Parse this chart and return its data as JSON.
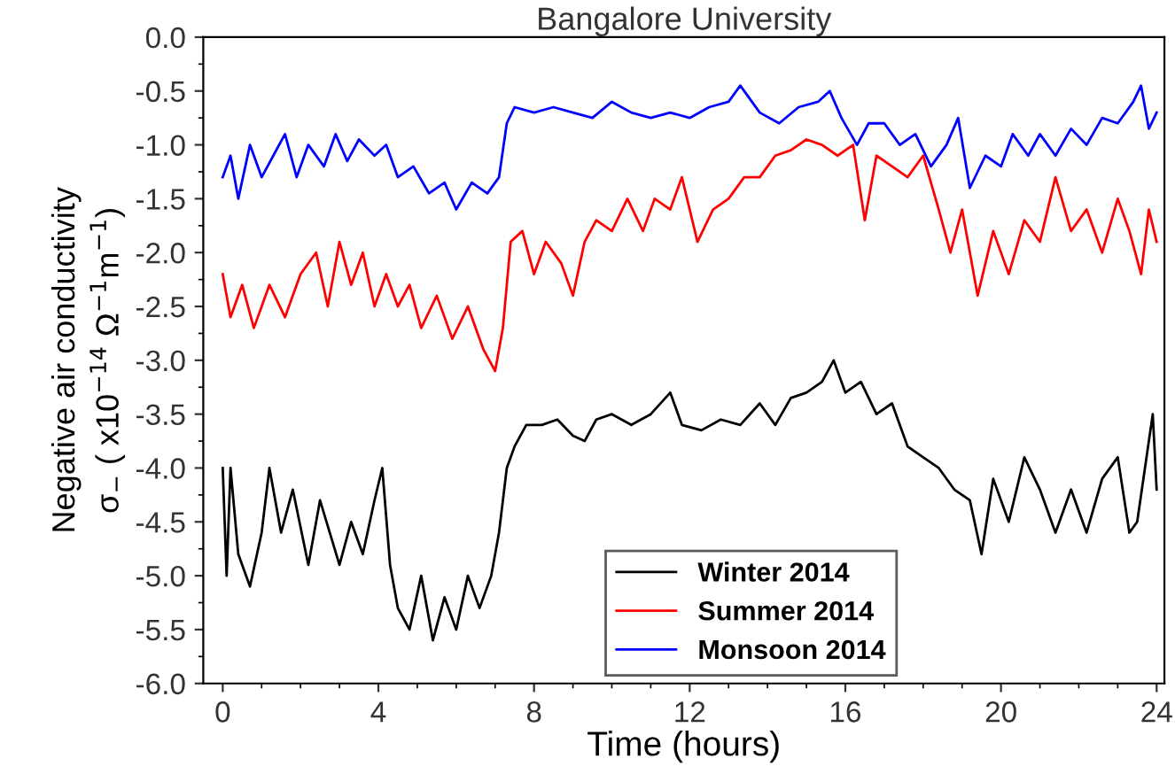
{
  "chart_data": {
    "type": "line",
    "title": "Bangalore University",
    "xlabel": "Time (hours)",
    "ylabel": "Negative air conductivity\nσ$_{−}$ ( x10$^{−14}$ Ω$^{−1}$m$^{−1}$)",
    "xlim": [
      -0.5,
      24.2
    ],
    "ylim": [
      -6.0,
      0.0
    ],
    "xticks": [
      0,
      4,
      8,
      12,
      16,
      20,
      24
    ],
    "yticks": [
      {
        "value": -6,
        "label": "-6.0"
      },
      -5.5,
      {
        "value": -5,
        "label": "-5.0"
      },
      -4.5,
      {
        "value": -4,
        "label": "-4.0"
      },
      -3.5,
      {
        "value": -3,
        "label": "-3.0"
      },
      -2.5,
      {
        "value": -2,
        "label": "-2.0"
      },
      -1.5,
      {
        "value": -1,
        "label": "-1.0"
      },
      -0.5,
      {
        "value": 0,
        "label": "0.0"
      }
    ],
    "grid": false,
    "legend": "bottom",
    "marker": "none",
    "line_style": "solid",
    "series": [
      {
        "name": "Winter 2014",
        "color": "#000000",
        "x": [
          0,
          0.1,
          0.2,
          0.4,
          0.7,
          1.0,
          1.2,
          1.5,
          1.8,
          2.2,
          2.5,
          3.0,
          3.3,
          3.6,
          3.9,
          4.1,
          4.3,
          4.5,
          4.8,
          5.1,
          5.4,
          5.7,
          6.0,
          6.3,
          6.6,
          6.9,
          7.1,
          7.3,
          7.5,
          7.8,
          8.2,
          8.6,
          9.0,
          9.3,
          9.6,
          10,
          10.5,
          11,
          11.5,
          11.8,
          12.3,
          12.8,
          13.3,
          13.8,
          14.2,
          14.6,
          15.0,
          15.4,
          15.7,
          16.0,
          16.4,
          16.8,
          17.2,
          17.6,
          18.0,
          18.4,
          18.8,
          19.2,
          19.5,
          19.8,
          20.2,
          20.6,
          21,
          21.4,
          21.8,
          22.2,
          22.6,
          23.0,
          23.3,
          23.5,
          23.7,
          23.9,
          24.0
        ],
        "values": [
          -4.0,
          -5.0,
          -4.0,
          -4.8,
          -5.1,
          -4.6,
          -4.0,
          -4.6,
          -4.2,
          -4.9,
          -4.3,
          -4.9,
          -4.5,
          -4.8,
          -4.3,
          -4.0,
          -4.9,
          -5.3,
          -5.5,
          -5.0,
          -5.6,
          -5.2,
          -5.5,
          -5.0,
          -5.3,
          -5.0,
          -4.6,
          -4.0,
          -3.8,
          -3.6,
          -3.6,
          -3.55,
          -3.7,
          -3.75,
          -3.55,
          -3.5,
          -3.6,
          -3.5,
          -3.3,
          -3.6,
          -3.65,
          -3.55,
          -3.6,
          -3.4,
          -3.6,
          -3.35,
          -3.3,
          -3.2,
          -3.0,
          -3.3,
          -3.2,
          -3.5,
          -3.4,
          -3.8,
          -3.9,
          -4.0,
          -4.2,
          -4.3,
          -4.8,
          -4.1,
          -4.5,
          -3.9,
          -4.2,
          -4.6,
          -4.2,
          -4.6,
          -4.1,
          -3.9,
          -4.6,
          -4.5,
          -4.0,
          -3.5,
          -4.2
        ]
      },
      {
        "name": "Summer 2014",
        "color": "#ff0000",
        "x": [
          0,
          0.2,
          0.5,
          0.8,
          1.2,
          1.6,
          2.0,
          2.4,
          2.7,
          3.0,
          3.3,
          3.6,
          3.9,
          4.2,
          4.5,
          4.8,
          5.1,
          5.5,
          5.9,
          6.3,
          6.7,
          7.0,
          7.2,
          7.4,
          7.7,
          8.0,
          8.3,
          8.7,
          9.0,
          9.3,
          9.6,
          10.0,
          10.4,
          10.8,
          11.1,
          11.5,
          11.8,
          12.2,
          12.6,
          13.0,
          13.4,
          13.8,
          14.2,
          14.6,
          15.0,
          15.4,
          15.8,
          16.2,
          16.5,
          16.8,
          17.2,
          17.6,
          18.0,
          18.4,
          18.7,
          19.0,
          19.4,
          19.8,
          20.2,
          20.6,
          21.0,
          21.4,
          21.8,
          22.2,
          22.6,
          23.0,
          23.3,
          23.6,
          23.8,
          24.0
        ],
        "values": [
          -2.2,
          -2.6,
          -2.3,
          -2.7,
          -2.3,
          -2.6,
          -2.2,
          -2.0,
          -2.5,
          -1.9,
          -2.3,
          -2.0,
          -2.5,
          -2.2,
          -2.5,
          -2.3,
          -2.7,
          -2.4,
          -2.8,
          -2.5,
          -2.9,
          -3.1,
          -2.7,
          -1.9,
          -1.8,
          -2.2,
          -1.9,
          -2.1,
          -2.4,
          -1.9,
          -1.7,
          -1.8,
          -1.5,
          -1.8,
          -1.5,
          -1.6,
          -1.3,
          -1.9,
          -1.6,
          -1.5,
          -1.3,
          -1.3,
          -1.1,
          -1.05,
          -0.95,
          -1.0,
          -1.1,
          -1.0,
          -1.7,
          -1.1,
          -1.2,
          -1.3,
          -1.1,
          -1.6,
          -2.0,
          -1.6,
          -2.4,
          -1.8,
          -2.2,
          -1.7,
          -1.9,
          -1.3,
          -1.8,
          -1.6,
          -2.0,
          -1.5,
          -1.8,
          -2.2,
          -1.6,
          -1.9
        ]
      },
      {
        "name": "Monsoon 2014",
        "color": "#0000ff",
        "x": [
          0,
          0.2,
          0.4,
          0.7,
          1.0,
          1.3,
          1.6,
          1.9,
          2.2,
          2.6,
          2.9,
          3.2,
          3.5,
          3.9,
          4.2,
          4.5,
          4.9,
          5.3,
          5.7,
          6.0,
          6.4,
          6.8,
          7.1,
          7.3,
          7.5,
          8.0,
          8.5,
          9.0,
          9.5,
          10,
          10.5,
          11,
          11.5,
          12,
          12.5,
          13,
          13.3,
          13.8,
          14.3,
          14.8,
          15.3,
          15.6,
          15.9,
          16.3,
          16.6,
          17.0,
          17.4,
          17.8,
          18.2,
          18.6,
          18.9,
          19.2,
          19.6,
          20.0,
          20.3,
          20.7,
          21.0,
          21.4,
          21.8,
          22.2,
          22.6,
          23.0,
          23.4,
          23.6,
          23.8,
          24.0
        ],
        "values": [
          -1.3,
          -1.1,
          -1.5,
          -1.0,
          -1.3,
          -1.1,
          -0.9,
          -1.3,
          -1.0,
          -1.2,
          -0.9,
          -1.15,
          -0.95,
          -1.1,
          -1.0,
          -1.3,
          -1.2,
          -1.45,
          -1.35,
          -1.6,
          -1.35,
          -1.45,
          -1.3,
          -0.8,
          -0.65,
          -0.7,
          -0.65,
          -0.7,
          -0.75,
          -0.6,
          -0.7,
          -0.75,
          -0.7,
          -0.75,
          -0.65,
          -0.6,
          -0.45,
          -0.7,
          -0.8,
          -0.65,
          -0.6,
          -0.5,
          -0.75,
          -1.0,
          -0.8,
          -0.8,
          -1.0,
          -0.9,
          -1.2,
          -1.0,
          -0.75,
          -1.4,
          -1.1,
          -1.2,
          -0.9,
          -1.1,
          -0.9,
          -1.1,
          -0.85,
          -1.0,
          -0.75,
          -0.8,
          -0.6,
          -0.45,
          -0.85,
          -0.7
        ]
      }
    ]
  }
}
